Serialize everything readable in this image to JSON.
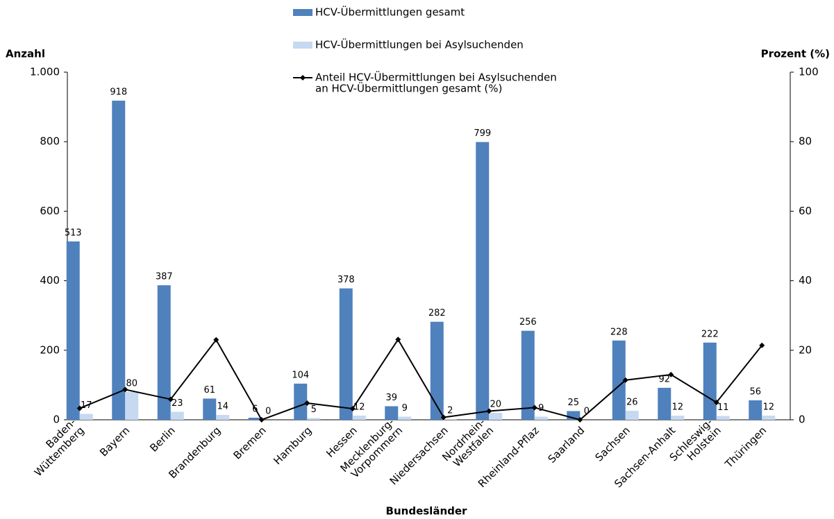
{
  "chart_data": {
    "type": "bar",
    "categories": [
      [
        "Baden-",
        "Wüttemberg"
      ],
      [
        "Bayern"
      ],
      [
        "Berlin"
      ],
      [
        "Brandenburg"
      ],
      [
        "Bremen"
      ],
      [
        "Hamburg"
      ],
      [
        "Hessen"
      ],
      [
        "Mecklenburg-",
        "Vorpommern"
      ],
      [
        "Niedersachsen"
      ],
      [
        "Nordrhein-",
        "Westfalen"
      ],
      [
        "Rheinland-Pflaz"
      ],
      [
        "Saarland"
      ],
      [
        "Sachsen"
      ],
      [
        "Sachsen-Anhalt"
      ],
      [
        "Schleswig-",
        "Holstein"
      ],
      [
        "Thüringen"
      ]
    ],
    "series": [
      {
        "name": [
          "HCV-Übermittlungen gesamt"
        ],
        "color": "#4f81bd",
        "values": [
          513,
          918,
          387,
          61,
          6,
          104,
          378,
          39,
          282,
          799,
          256,
          25,
          228,
          92,
          222,
          56
        ]
      },
      {
        "name": [
          "HCV-Übermittlungen bei Asylsuchenden"
        ],
        "color": "#c6d9f1",
        "values": [
          17,
          80,
          23,
          14,
          0,
          5,
          12,
          9,
          2,
          20,
          9,
          0,
          26,
          12,
          11,
          12
        ]
      },
      {
        "name": [
          "Anteil HCV-Übermittlungen bei Asylsuchenden",
          "an HCV-Übermittlungen gesamt (%)"
        ],
        "color": "#000000",
        "type": "line",
        "axis": "y2",
        "values": [
          3.3,
          8.7,
          5.9,
          23.0,
          0,
          4.8,
          3.2,
          23.1,
          0.7,
          2.5,
          3.5,
          0,
          11.4,
          13.0,
          5.0,
          21.4
        ]
      }
    ],
    "ylabel": "Anzahl",
    "y2label": "Prozent (%)",
    "xlabel": "Bundesländer",
    "ylim": [
      0,
      1000
    ],
    "yticks": [
      0,
      200,
      400,
      600,
      800,
      {
        "value": 1000,
        "label": "1.000"
      }
    ],
    "y2lim": [
      0,
      100
    ],
    "y2ticks": [
      0,
      20,
      40,
      60,
      80,
      100
    ],
    "grid": false
  }
}
